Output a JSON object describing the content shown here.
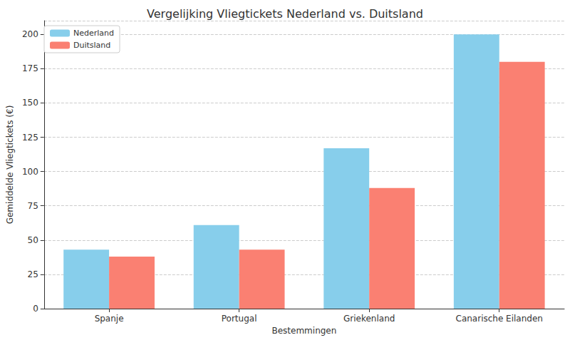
{
  "chart_data": {
    "type": "bar",
    "title": "Vergelijking Vliegtickets Nederland vs. Duitsland",
    "x_label": "Bestemmingen",
    "y_label": "Gemiddelde Vliegtickets (€)",
    "categories": [
      "Spanje",
      "Portugal",
      "Griekenland",
      "Canarische Eilanden"
    ],
    "series": [
      {
        "name": "Nederland",
        "color": "#87ceeb",
        "values": [
          43,
          61,
          117,
          200
        ]
      },
      {
        "name": "Duitsland",
        "color": "#fa8072",
        "values": [
          38,
          43,
          88,
          180
        ]
      }
    ],
    "ylim": [
      0,
      210
    ],
    "yticks": [
      0,
      25,
      50,
      75,
      100,
      125,
      150,
      175,
      200
    ],
    "grid": true,
    "legend": "upper left"
  }
}
